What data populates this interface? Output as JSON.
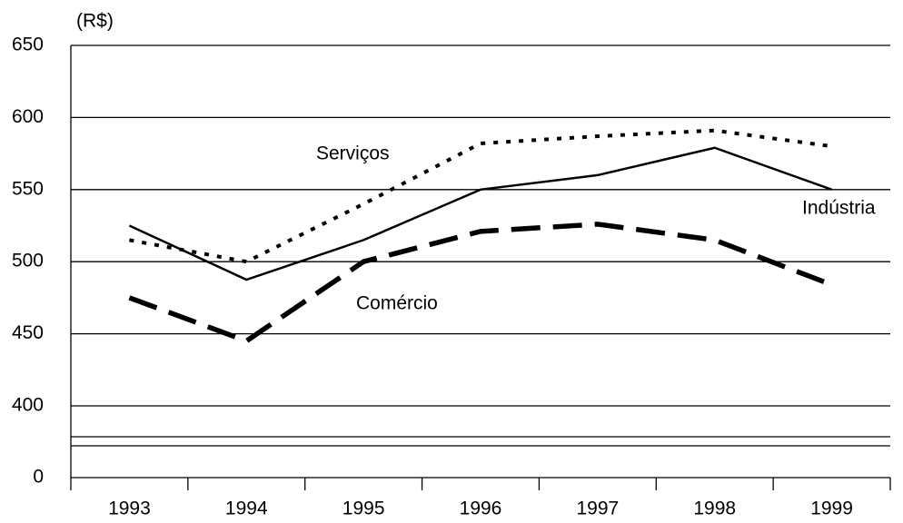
{
  "chart_data": {
    "type": "line",
    "y_label": "(R$)",
    "categories": [
      "1993",
      "1994",
      "1995",
      "1996",
      "1997",
      "1998",
      "1999"
    ],
    "series": [
      {
        "name": "Indústria",
        "color": "#000000",
        "dash": "solid",
        "values": [
          525,
          487.5,
          515,
          550,
          560,
          579,
          550
        ]
      },
      {
        "name": "Serviços",
        "color": "#000000",
        "dash": "dotted",
        "values": [
          515,
          500,
          540,
          582,
          587,
          591,
          580
        ]
      },
      {
        "name": "Comércio",
        "color": "#000000",
        "dash": "dashed",
        "values": [
          475,
          445,
          500,
          521,
          526,
          515,
          484
        ]
      }
    ],
    "ylim": [
      0,
      650
    ],
    "y_break": [
      0,
      400
    ],
    "yticks": [
      0,
      400,
      450,
      500,
      550,
      600,
      650
    ],
    "grid": true
  }
}
